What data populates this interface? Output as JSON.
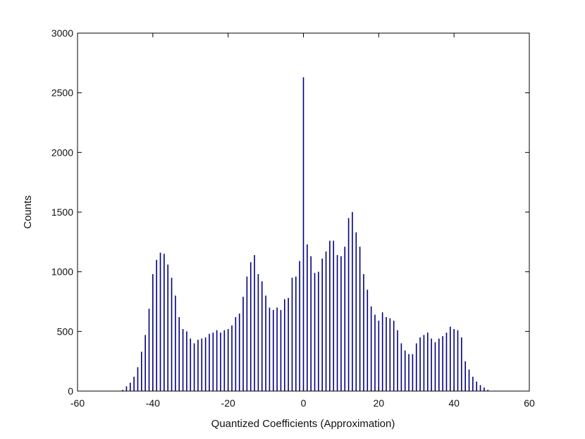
{
  "chart_data": {
    "type": "bar",
    "xlabel": "Quantized Coefficients (Approximation)",
    "ylabel": "Counts",
    "xlim": [
      -60,
      60
    ],
    "ylim": [
      0,
      3000
    ],
    "xticks": [
      -60,
      -40,
      -20,
      0,
      20,
      40,
      60
    ],
    "yticks": [
      0,
      500,
      1000,
      1500,
      2000,
      2500,
      3000
    ],
    "grid": false,
    "bar_color": "#000080",
    "x": [
      -48,
      -47,
      -46,
      -45,
      -44,
      -43,
      -42,
      -41,
      -40,
      -39,
      -38,
      -37,
      -36,
      -35,
      -34,
      -33,
      -32,
      -31,
      -30,
      -29,
      -28,
      -27,
      -26,
      -25,
      -24,
      -23,
      -22,
      -21,
      -20,
      -19,
      -18,
      -17,
      -16,
      -15,
      -14,
      -13,
      -12,
      -11,
      -10,
      -9,
      -8,
      -7,
      -6,
      -5,
      -4,
      -3,
      -2,
      -1,
      0,
      1,
      2,
      3,
      4,
      5,
      6,
      7,
      8,
      9,
      10,
      11,
      12,
      13,
      14,
      15,
      16,
      17,
      18,
      19,
      20,
      21,
      22,
      23,
      24,
      25,
      26,
      27,
      28,
      29,
      30,
      31,
      32,
      33,
      34,
      35,
      36,
      37,
      38,
      39,
      40,
      41,
      42,
      43,
      44,
      45,
      46,
      47,
      48,
      49
    ],
    "values": [
      10,
      40,
      70,
      120,
      200,
      330,
      470,
      690,
      980,
      1100,
      1160,
      1150,
      1060,
      950,
      800,
      620,
      520,
      500,
      440,
      400,
      430,
      440,
      450,
      480,
      490,
      510,
      490,
      510,
      520,
      550,
      620,
      650,
      790,
      960,
      1080,
      1140,
      980,
      920,
      800,
      700,
      680,
      700,
      680,
      770,
      780,
      950,
      960,
      1090,
      2630,
      1230,
      1130,
      990,
      1000,
      1110,
      1170,
      1260,
      1260,
      1140,
      1130,
      1210,
      1450,
      1500,
      1330,
      1210,
      980,
      850,
      710,
      640,
      590,
      660,
      620,
      610,
      590,
      510,
      400,
      340,
      310,
      310,
      400,
      450,
      470,
      490,
      440,
      410,
      440,
      460,
      490,
      540,
      520,
      510,
      450,
      250,
      180,
      120,
      80,
      50,
      30,
      10
    ]
  }
}
